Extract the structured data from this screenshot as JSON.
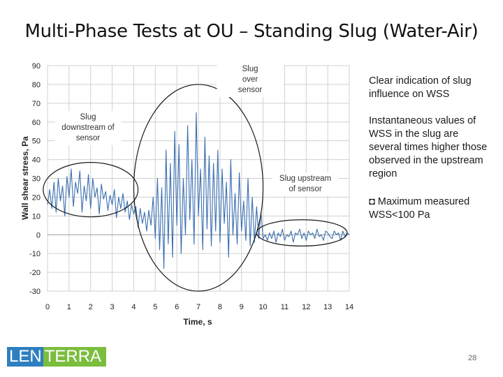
{
  "slide": {
    "title": "Multi-Phase Tests at OU – Standing Slug (Water-Air)",
    "notes": [
      "Clear indication of slug influence on WSS",
      "Instantaneous values of WSS in the slug are several times higher those observed in the upstream region",
      "◘ Maximum measured WSS<100 Pa"
    ],
    "logo": {
      "part1": "LEN",
      "part2": "TERRA"
    },
    "page_number": "28"
  },
  "chart_data": {
    "type": "line",
    "title": "",
    "xlabel": "Time, s",
    "ylabel": "Wall shear stress, Pa",
    "xlim": [
      0,
      14
    ],
    "ylim": [
      -30,
      90
    ],
    "xticks": [
      "0",
      "1",
      "2",
      "3",
      "4",
      "5",
      "6",
      "7",
      "8",
      "9",
      "10",
      "11",
      "12",
      "13",
      "14"
    ],
    "yticks": [
      "90",
      "80",
      "70",
      "60",
      "50",
      "40",
      "30",
      "20",
      "10",
      "0",
      "-10",
      "-20",
      "-30"
    ],
    "grid": true,
    "legend": "none",
    "series_color": "#3a6fb0",
    "annotations": [
      {
        "lines": [
          "Slug",
          "downstream of",
          "sensor"
        ],
        "cx": 2.0,
        "cy": 24,
        "rx": 2.2,
        "ry": 14.5
      },
      {
        "lines": [
          "Slug",
          "over",
          "sensor"
        ],
        "cx": 7.0,
        "cy": 25,
        "rx": 3.0,
        "ry": 55
      },
      {
        "lines": [
          "Slug upstream",
          "of sensor"
        ],
        "cx": 11.8,
        "cy": 1,
        "rx": 2.1,
        "ry": 7
      }
    ],
    "series": [
      {
        "x": [
          0.0,
          0.1,
          0.2,
          0.3,
          0.4,
          0.5,
          0.6,
          0.7,
          0.8,
          0.9,
          1.0,
          1.1,
          1.2,
          1.3,
          1.4,
          1.5,
          1.6,
          1.7,
          1.8,
          1.9,
          2.0,
          2.1,
          2.2,
          2.3,
          2.4,
          2.5,
          2.6,
          2.7,
          2.8,
          2.9,
          3.0,
          3.1,
          3.2,
          3.3,
          3.4,
          3.5,
          3.6,
          3.7,
          3.8,
          3.9,
          4.0,
          4.1,
          4.2,
          4.3,
          4.4,
          4.5,
          4.6,
          4.7,
          4.8,
          4.9,
          5.0,
          5.1,
          5.2,
          5.3,
          5.4,
          5.5,
          5.6,
          5.7,
          5.8,
          5.9,
          6.0,
          6.1,
          6.2,
          6.3,
          6.4,
          6.5,
          6.6,
          6.7,
          6.8,
          6.9,
          7.0,
          7.1,
          7.2,
          7.3,
          7.4,
          7.5,
          7.6,
          7.7,
          7.8,
          7.9,
          8.0,
          8.1,
          8.2,
          8.3,
          8.4,
          8.5,
          8.6,
          8.7,
          8.8,
          8.9,
          9.0,
          9.1,
          9.2,
          9.3,
          9.4,
          9.5,
          9.6,
          9.7,
          9.8,
          9.9,
          10.0,
          10.1,
          10.2,
          10.3,
          10.4,
          10.5,
          10.6,
          10.7,
          10.8,
          10.9,
          11.0,
          11.1,
          11.2,
          11.3,
          11.4,
          11.5,
          11.6,
          11.7,
          11.8,
          11.9,
          12.0,
          12.1,
          12.2,
          12.3,
          12.4,
          12.5,
          12.6,
          12.7,
          12.8,
          12.9,
          13.0,
          13.1,
          13.2,
          13.3,
          13.4,
          13.5,
          13.6,
          13.7,
          13.8,
          13.9,
          14.0
        ],
        "y": [
          16,
          24,
          14,
          28,
          12,
          30,
          18,
          26,
          10,
          31,
          20,
          35,
          15,
          28,
          22,
          34,
          12,
          26,
          18,
          32,
          14,
          30,
          20,
          25,
          11,
          27,
          19,
          23,
          13,
          21,
          16,
          24,
          9,
          20,
          14,
          22,
          12,
          18,
          8,
          16,
          11,
          15,
          4,
          14,
          6,
          12,
          2,
          13,
          5,
          20,
          -2,
          30,
          -8,
          25,
          -18,
          45,
          -5,
          38,
          -12,
          55,
          5,
          48,
          -10,
          30,
          0,
          58,
          8,
          40,
          -5,
          65,
          10,
          35,
          -8,
          52,
          3,
          42,
          -6,
          38,
          2,
          45,
          -4,
          35,
          6,
          28,
          -12,
          40,
          0,
          22,
          -5,
          33,
          2,
          18,
          -3,
          30,
          -6,
          20,
          -4,
          15,
          -2,
          12,
          -2,
          0,
          -3,
          1,
          -2,
          2,
          -4,
          1,
          -1,
          3,
          -3,
          0,
          -1,
          2,
          -4,
          1,
          0,
          3,
          -2,
          1,
          -3,
          2,
          0,
          1,
          -2,
          3,
          -1,
          0,
          -3,
          2,
          1,
          -1,
          -2,
          2,
          0,
          1,
          -3,
          2,
          -1,
          1,
          0
        ]
      }
    ]
  }
}
